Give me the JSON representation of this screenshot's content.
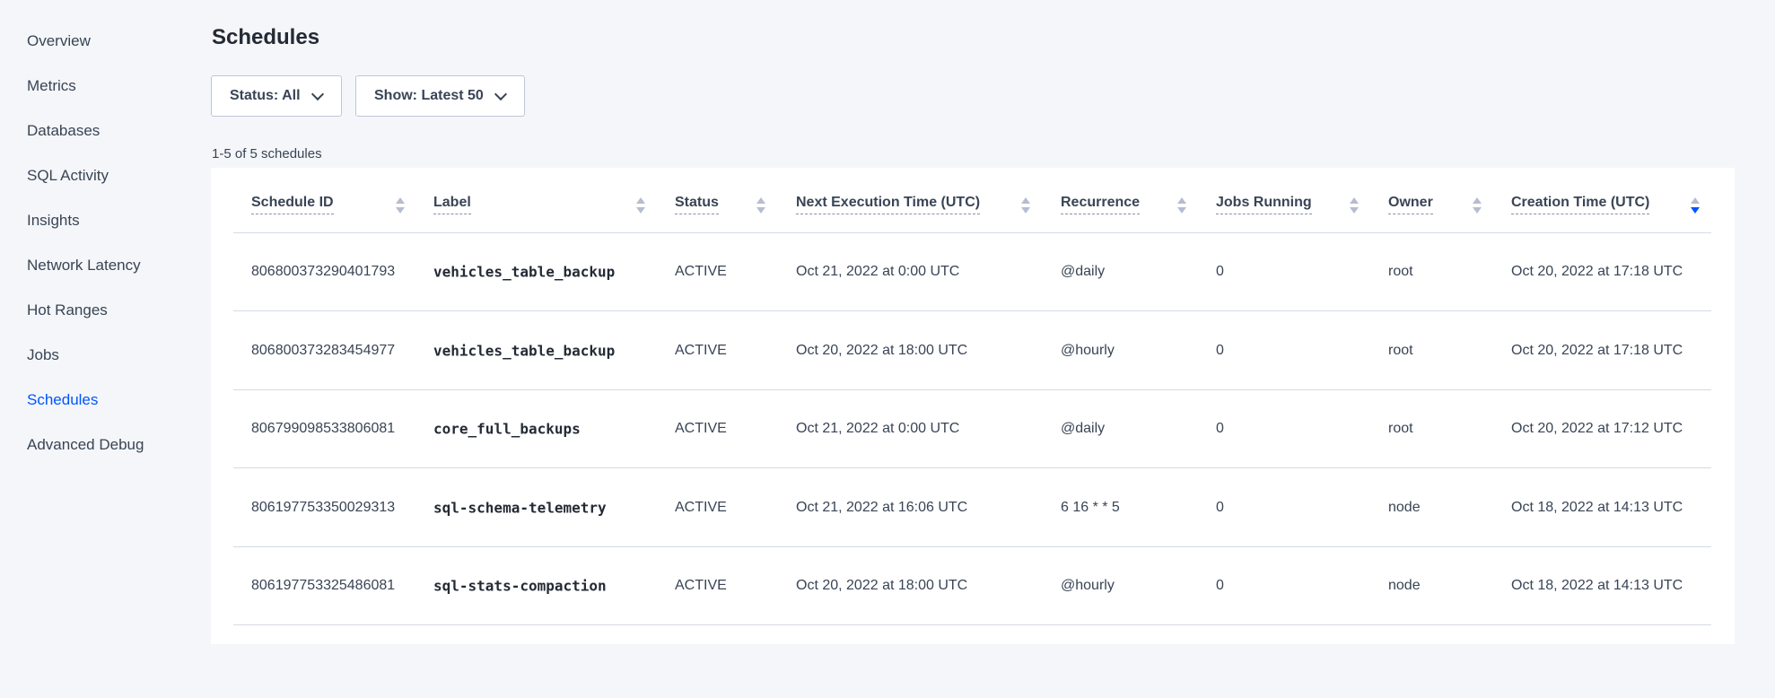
{
  "sidebar": {
    "items": [
      {
        "label": "Overview"
      },
      {
        "label": "Metrics"
      },
      {
        "label": "Databases"
      },
      {
        "label": "SQL Activity"
      },
      {
        "label": "Insights"
      },
      {
        "label": "Network Latency"
      },
      {
        "label": "Hot Ranges"
      },
      {
        "label": "Jobs"
      },
      {
        "label": "Schedules",
        "active": true
      },
      {
        "label": "Advanced Debug"
      }
    ]
  },
  "page": {
    "title": "Schedules",
    "status_filter": "Status: All",
    "show_filter": "Show: Latest 50",
    "count": "1-5 of 5 schedules"
  },
  "colors": {
    "accent": "#0055ff",
    "text": "#394455",
    "background": "#f4f6f9"
  },
  "table": {
    "columns": [
      "Schedule ID",
      "Label",
      "Status",
      "Next Execution Time (UTC)",
      "Recurrence",
      "Jobs Running",
      "Owner",
      "Creation Time (UTC)"
    ],
    "sorted_by": "Creation Time (UTC)",
    "sort_direction": "descending",
    "rows": [
      [
        "806800373290401793",
        "vehicles_table_backup",
        "ACTIVE",
        "Oct 21, 2022 at 0:00 UTC",
        "@daily",
        "0",
        "root",
        "Oct 20, 2022 at 17:18 UTC"
      ],
      [
        "806800373283454977",
        "vehicles_table_backup",
        "ACTIVE",
        "Oct 20, 2022 at 18:00 UTC",
        "@hourly",
        "0",
        "root",
        "Oct 20, 2022 at 17:18 UTC"
      ],
      [
        "806799098533806081",
        "core_full_backups",
        "ACTIVE",
        "Oct 21, 2022 at 0:00 UTC",
        "@daily",
        "0",
        "root",
        "Oct 20, 2022 at 17:12 UTC"
      ],
      [
        "806197753350029313",
        "sql-schema-telemetry",
        "ACTIVE",
        "Oct 21, 2022 at 16:06 UTC",
        "6 16 * * 5",
        "0",
        "node",
        "Oct 18, 2022 at 14:13 UTC"
      ],
      [
        "806197753325486081",
        "sql-stats-compaction",
        "ACTIVE",
        "Oct 20, 2022 at 18:00 UTC",
        "@hourly",
        "0",
        "node",
        "Oct 18, 2022 at 14:13 UTC"
      ]
    ]
  }
}
